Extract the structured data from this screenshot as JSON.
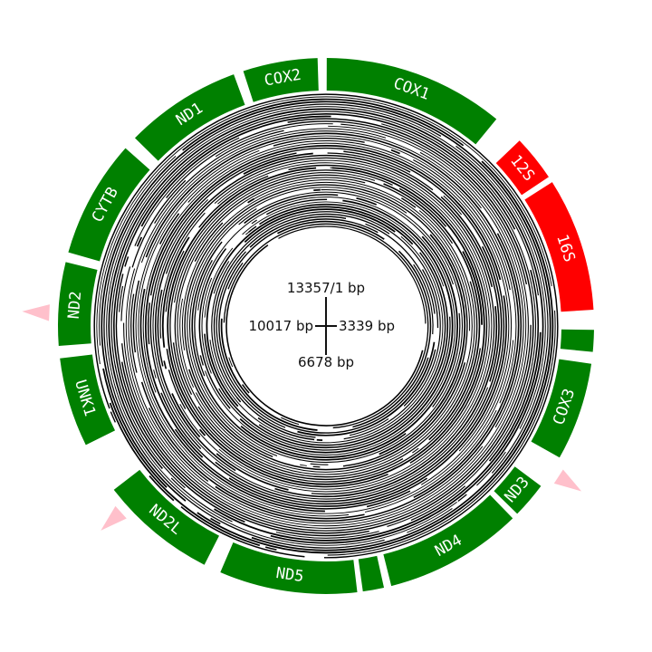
{
  "genome": {
    "length": 13357,
    "center_labels": {
      "top": "13357/1 bp",
      "right": "3339 bp",
      "bottom": "6678 bp",
      "left": "10017 bp"
    }
  },
  "colors": {
    "protein_gene": "#008000",
    "rrna_gene": "#ff0000",
    "trna_mark": "#ffc0cb",
    "reads": "#000000"
  },
  "genes": [
    {
      "name": "COX1",
      "type": "protein",
      "start": 6,
      "end": 1465,
      "label": "COX1"
    },
    {
      "name": "12S",
      "type": "rRNA",
      "start": 1715,
      "end": 2085,
      "label": "12S"
    },
    {
      "name": "16S",
      "type": "rRNA",
      "start": 2135,
      "end": 3210,
      "label": "16S"
    },
    {
      "name": "small-gene-right",
      "type": "protein",
      "start": 3370,
      "end": 3545,
      "label": ""
    },
    {
      "name": "COX3",
      "type": "protein",
      "start": 3640,
      "end": 4430,
      "label": "COX3"
    },
    {
      "name": "ND3",
      "type": "protein",
      "start": 4700,
      "end": 4990,
      "label": "ND3"
    },
    {
      "name": "ND4",
      "type": "protein",
      "start": 5040,
      "end": 6155,
      "label": "ND4"
    },
    {
      "name": "small-gene-bottom",
      "type": "protein",
      "start": 6215,
      "end": 6385,
      "label": ""
    },
    {
      "name": "ND5",
      "type": "protein",
      "start": 6430,
      "end": 7540,
      "label": "ND5"
    },
    {
      "name": "ND2L",
      "type": "protein",
      "start": 7680,
      "end": 8620,
      "label": "ND2L"
    },
    {
      "name": "UNK1",
      "type": "protein",
      "start": 9040,
      "end": 9760,
      "label": "UNK1"
    },
    {
      "name": "ND2",
      "type": "protein",
      "start": 9860,
      "end": 10530,
      "label": "ND2"
    },
    {
      "name": "CYTB",
      "type": "protein",
      "start": 10610,
      "end": 11560,
      "label": "CYTB"
    },
    {
      "name": "ND1",
      "type": "protein",
      "start": 11670,
      "end": 12610,
      "label": "ND1"
    },
    {
      "name": "COX2",
      "type": "protein",
      "start": 12690,
      "end": 13290,
      "label": "COX2"
    }
  ],
  "trna_marks": [
    {
      "position": 4560
    },
    {
      "position": 8450
    },
    {
      "position": 10120
    }
  ]
}
